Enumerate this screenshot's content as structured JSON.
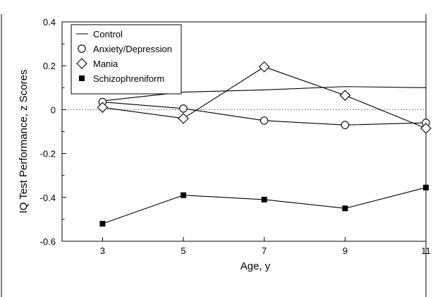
{
  "chart_data": {
    "type": "line",
    "xlabel": "Age, y",
    "ylabel": "IQ Test Performance, z Scores",
    "x": [
      3,
      5,
      7,
      9,
      11
    ],
    "xticks": [
      "3",
      "5",
      "7",
      "9",
      "11"
    ],
    "xlim": [
      2,
      11
    ],
    "yticks": [
      "0.4",
      "0.2",
      "0",
      "-0.2",
      "-0.4",
      "-0.6"
    ],
    "ytick_values": [
      0.4,
      0.2,
      0,
      -0.2,
      -0.4,
      -0.6
    ],
    "ylim": [
      -0.6,
      0.4
    ],
    "reference_line": 0,
    "grid": false,
    "legend_position": "top-left",
    "series": [
      {
        "name": "Control",
        "marker": "none",
        "values": [
          0.04,
          0.08,
          0.09,
          0.105,
          0.1
        ]
      },
      {
        "name": "Anxiety/Depression",
        "marker": "circle-open",
        "values": [
          0.035,
          0.005,
          -0.05,
          -0.07,
          -0.06
        ]
      },
      {
        "name": "Mania",
        "marker": "diamond-open",
        "values": [
          0.01,
          -0.04,
          0.195,
          0.065,
          -0.085
        ]
      },
      {
        "name": "Schizophreniform",
        "marker": "square-filled",
        "values": [
          -0.52,
          -0.39,
          -0.41,
          -0.45,
          -0.355
        ]
      }
    ],
    "colors": {
      "line": "#000000",
      "reference": "#555555",
      "background": "#ffffff"
    }
  }
}
